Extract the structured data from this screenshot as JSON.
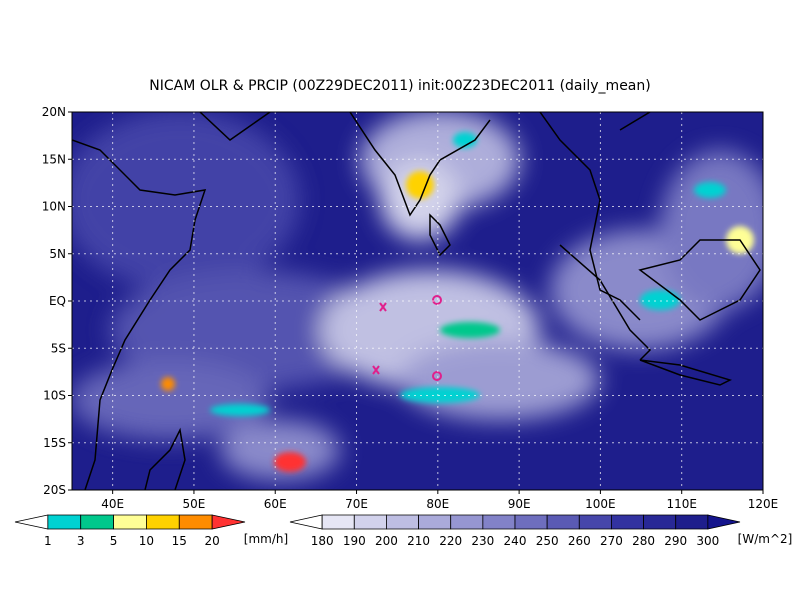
{
  "title": "NICAM OLR & PRCIP (00Z29DEC2011) init:00Z23DEC2011 (daily_mean)",
  "map": {
    "lat_labels": [
      "20N",
      "15N",
      "10N",
      "5N",
      "EQ",
      "5S",
      "10S",
      "15S",
      "20S"
    ],
    "lon_labels": [
      "40E",
      "50E",
      "60E",
      "70E",
      "80E",
      "90E",
      "100E",
      "110E",
      "120E"
    ]
  },
  "precip_colorbar": {
    "levels": [
      1,
      3,
      5,
      10,
      15,
      20
    ],
    "unit": "[mm/h]",
    "colors": [
      "#ffffff",
      "#00d2d2",
      "#00c88c",
      "#ffff96",
      "#ffd200",
      "#ff8c00",
      "#ff3232"
    ]
  },
  "olr_colorbar": {
    "levels": [
      180,
      190,
      200,
      210,
      220,
      230,
      240,
      250,
      260,
      270,
      280,
      290,
      300
    ],
    "unit": "[W/m^2]",
    "colors": [
      "#ffffff",
      "#e6e6f5",
      "#d2d2ec",
      "#bebee3",
      "#aaaada",
      "#9696d1",
      "#8282c8",
      "#6e6ebe",
      "#5a5ab4",
      "#4646aa",
      "#3232a0",
      "#282896",
      "#1e1e8c",
      "#14148c"
    ]
  }
}
